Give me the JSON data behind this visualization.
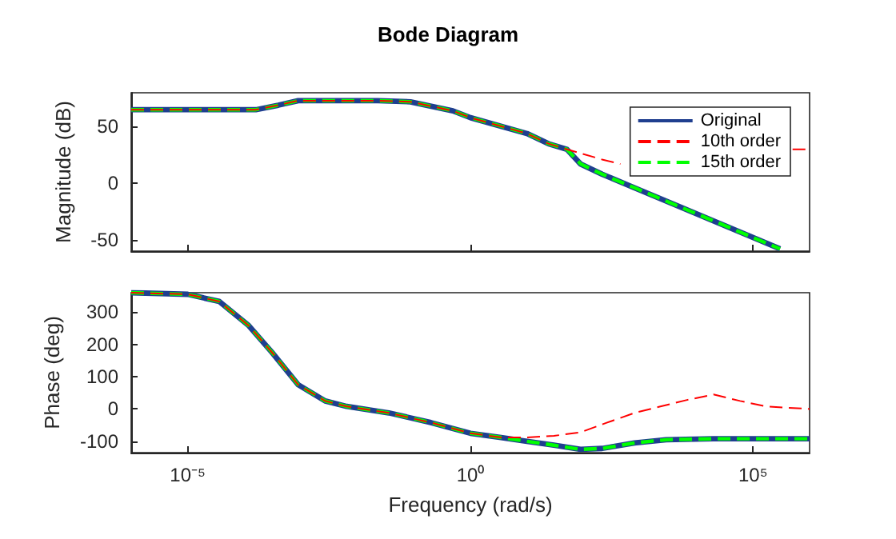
{
  "chart_data": [
    {
      "type": "line",
      "title": "Bode Diagram",
      "ylabel": "Magnitude (dB)",
      "log": "x",
      "tick_labels": "y",
      "legend": "top right",
      "xlim": [
        1e-06,
        1000000.0
      ],
      "xticks": [
        {
          "value": 1e-05,
          "label": null
        },
        {
          "value": 1,
          "label": null
        },
        {
          "value": 100000.0,
          "label": null
        }
      ],
      "ylim": [
        -60,
        80
      ],
      "yticks": [
        -50,
        0,
        50
      ],
      "series": [
        {
          "name": "Original",
          "color": "#1f3f8f",
          "line_style": "solid",
          "x": [
            1e-06,
            0.00016,
            0.0004,
            0.0009,
            0.023,
            0.087,
            0.49,
            1,
            10,
            24,
            51,
            89,
            214,
            800,
            300000.0
          ],
          "values": [
            65,
            65,
            69,
            73,
            73,
            72,
            64,
            58,
            44,
            35,
            30,
            17,
            8,
            -4,
            -58
          ]
        },
        {
          "name": "10th order",
          "color": "#ff0000",
          "line_style": "dashed",
          "x": [
            1e-06,
            0.00016,
            0.0004,
            0.0009,
            0.023,
            0.087,
            0.49,
            1,
            10,
            24,
            51,
            214,
            450,
            600,
            500000.0,
            1000000.0
          ],
          "values": [
            65,
            65,
            69,
            73,
            73,
            72,
            64,
            58,
            44,
            35,
            30,
            21,
            17,
            null,
            30,
            30
          ]
        },
        {
          "name": "15th order",
          "color": "#00ff00",
          "line_style": "dashed",
          "x": [
            1e-06,
            0.00016,
            0.0004,
            0.0009,
            0.023,
            0.087,
            0.49,
            1,
            10,
            24,
            51,
            89,
            214,
            800,
            300000.0
          ],
          "values": [
            65,
            65,
            69,
            73,
            73,
            72,
            64,
            58,
            44,
            35,
            30,
            17,
            8,
            -4,
            -58
          ]
        }
      ]
    },
    {
      "type": "line",
      "xlabel": "Frequency (rad/s)",
      "ylabel": "Phase (deg)",
      "log": "x",
      "xlim": [
        1e-06,
        1000000.0
      ],
      "xticks": [
        {
          "value": 1e-05,
          "label": "10⁻⁵"
        },
        {
          "value": 1,
          "label": "10⁰"
        },
        {
          "value": 100000.0,
          "label": "10⁵"
        }
      ],
      "ylim": [
        -135,
        360
      ],
      "yticks": [
        -100,
        0,
        100,
        200,
        300
      ],
      "series": [
        {
          "color": "#1f3f8f",
          "line_style": "solid",
          "x": [
            1e-06,
            1e-05,
            3.6e-05,
            0.00012,
            0.00031,
            0.0009,
            0.0027,
            0.0065,
            0.036,
            0.2,
            1,
            3.5,
            10,
            30,
            89,
            214,
            800,
            2900,
            20000.0,
            1000000.0
          ],
          "values": [
            360,
            355,
            333,
            258,
            175,
            75,
            25,
            8,
            -12,
            -42,
            -75,
            -88,
            -100,
            -112,
            -125,
            -122,
            -105,
            -95,
            -92,
            -92
          ]
        },
        {
          "color": "#ff0000",
          "line_style": "dashed",
          "x": [
            1e-06,
            1e-05,
            3.6e-05,
            0.00012,
            0.00031,
            0.0009,
            0.0027,
            0.0065,
            0.036,
            0.2,
            1,
            3.5,
            10,
            30,
            89,
            263,
            800,
            2300,
            6800,
            20000.0,
            59000.0,
            170000.0,
            1000000.0
          ],
          "values": [
            360,
            355,
            333,
            258,
            175,
            75,
            25,
            8,
            -12,
            -42,
            -75,
            -88,
            -88,
            -83,
            -72,
            -42,
            -12,
            8,
            28,
            45,
            25,
            8,
            0
          ]
        },
        {
          "color": "#00ff00",
          "line_style": "dashed",
          "x": [
            1e-06,
            1e-05,
            3.6e-05,
            0.00012,
            0.00031,
            0.0009,
            0.0027,
            0.0065,
            0.036,
            0.2,
            1,
            3.5,
            10,
            30,
            89,
            214,
            800,
            2900,
            20000.0,
            1000000.0
          ],
          "values": [
            360,
            355,
            333,
            258,
            175,
            75,
            25,
            8,
            -12,
            -42,
            -75,
            -88,
            -100,
            -112,
            -125,
            -122,
            -105,
            -95,
            -92,
            -92
          ]
        }
      ]
    }
  ]
}
